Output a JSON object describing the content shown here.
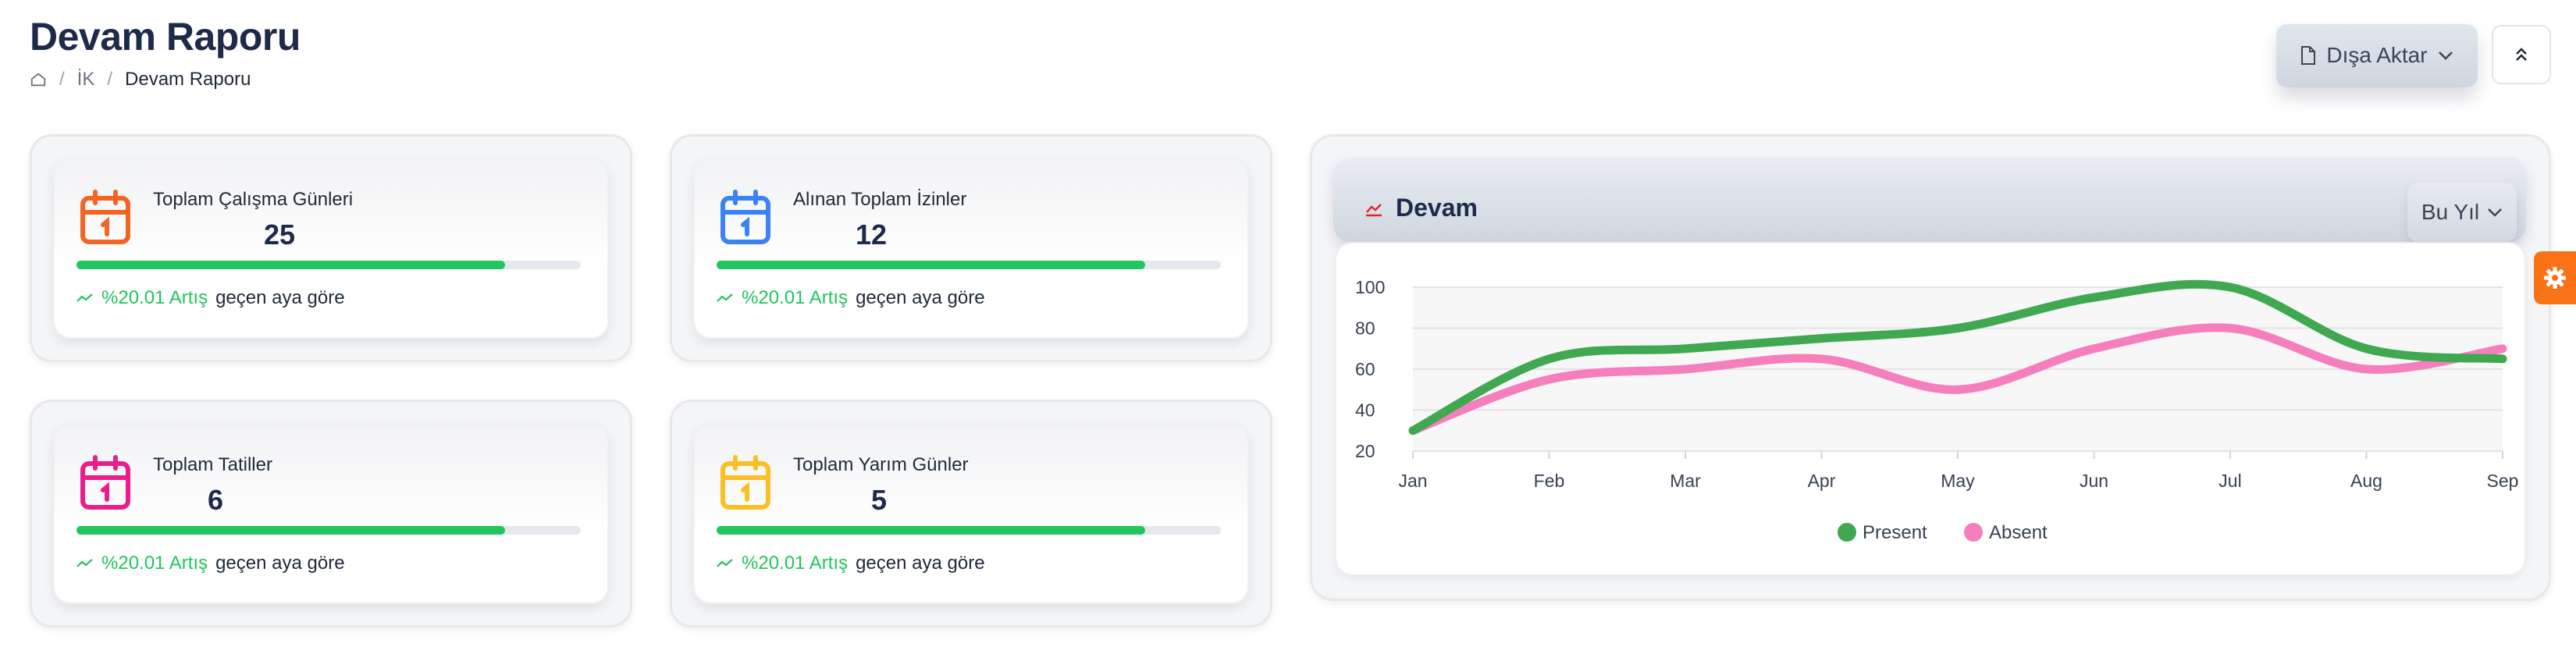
{
  "header": {
    "title": "Devam Raporu",
    "breadcrumb": [
      "İK",
      "Devam Raporu"
    ],
    "export_label": "Dışa Aktar"
  },
  "cards": [
    {
      "label": "Toplam Çalışma Günleri",
      "value": "25",
      "progress": 0.85,
      "trend_pct": "%20.01 Artış",
      "trend_text": "geçen aya göre",
      "icon": "calendar-icon",
      "icon_color": "#f26522"
    },
    {
      "label": "Alınan Toplam İzinler",
      "value": "12",
      "progress": 0.85,
      "trend_pct": "%20.01 Artış",
      "trend_text": "geçen aya göre",
      "icon": "calendar-icon",
      "icon_color": "#3b82f6"
    },
    {
      "label": "Toplam Tatiller",
      "value": "6",
      "progress": 0.85,
      "trend_pct": "%20.01 Artış",
      "trend_text": "geçen aya göre",
      "icon": "calendar-icon",
      "icon_color": "#e91e8c"
    },
    {
      "label": "Toplam Yarım Günler",
      "value": "5",
      "progress": 0.85,
      "trend_pct": "%20.01 Artış",
      "trend_text": "geçen aya göre",
      "icon": "calendar-icon",
      "icon_color": "#fbbf24"
    }
  ],
  "chart_panel": {
    "title": "Devam",
    "period": "Bu Yıl"
  },
  "colors": {
    "accent_orange": "#f97316",
    "progress_green": "#22c55e",
    "present": "#3fa850",
    "absent": "#f57fbd"
  },
  "chart_data": {
    "type": "line",
    "categories": [
      "Jan",
      "Feb",
      "Mar",
      "Apr",
      "May",
      "Jun",
      "Jul",
      "Aug",
      "Sep"
    ],
    "series": [
      {
        "name": "Present",
        "values": [
          30,
          65,
          70,
          75,
          80,
          95,
          100,
          70,
          65
        ]
      },
      {
        "name": "Absent",
        "values": [
          30,
          55,
          60,
          65,
          50,
          70,
          80,
          60,
          70
        ]
      }
    ],
    "yticks": [
      20,
      40,
      60,
      80,
      100
    ],
    "ylim": [
      20,
      100
    ],
    "legend": "bottom",
    "grid": true,
    "smooth": true
  }
}
